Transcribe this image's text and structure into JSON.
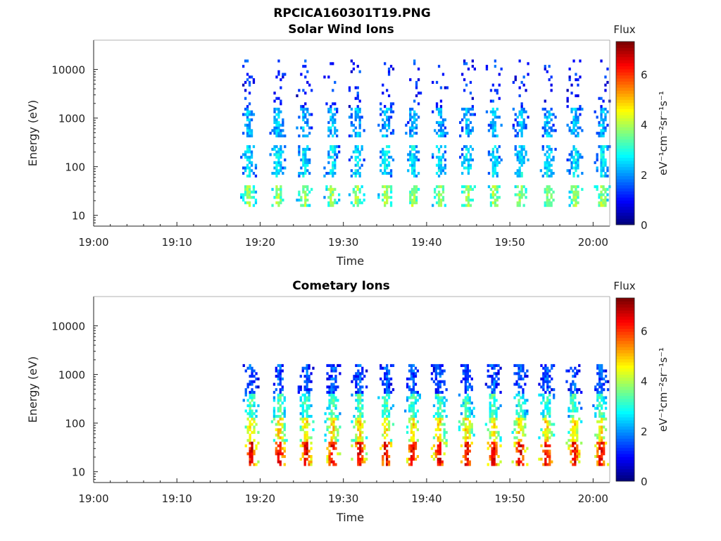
{
  "figure_title": "RPCICA160301T19.PNG",
  "chart_data": [
    {
      "type": "heatmap",
      "title": "Solar Wind Ions",
      "xlabel": "Time",
      "ylabel": "Energy (eV)",
      "y_scale": "log",
      "xlim": [
        "19:00",
        "20:02"
      ],
      "ylim": [
        6,
        40000
      ],
      "x_ticks": [
        "19:00",
        "19:10",
        "19:20",
        "19:30",
        "19:40",
        "19:50",
        "20:00"
      ],
      "y_ticks": [
        "10",
        "100",
        "1000",
        "10000"
      ],
      "colorbar": {
        "title": "Flux",
        "label": "eV⁻¹cm⁻²sr⁻¹s⁻¹",
        "range": [
          0,
          7.3
        ],
        "ticks": [
          "0",
          "2",
          "4",
          "6"
        ],
        "colormap": "jet"
      },
      "data_start": "19:17",
      "burst_times": [
        "19:18.5",
        "19:22",
        "19:25.2",
        "19:28.5",
        "19:31.5",
        "19:35",
        "19:38.3",
        "19:41.5",
        "19:44.8",
        "19:48",
        "19:51.2",
        "19:54.5",
        "19:57.7",
        "20:01"
      ],
      "bands": [
        {
          "emin": 15,
          "emax": 40,
          "level": 3.6
        },
        {
          "emin": 60,
          "emax": 250,
          "level": 2.4
        },
        {
          "emin": 400,
          "emax": 1600,
          "level": 2.1
        },
        {
          "emin": 1600,
          "emax": 15000,
          "level": 1.2
        }
      ]
    },
    {
      "type": "heatmap",
      "title": "Cometary Ions",
      "xlabel": "Time",
      "ylabel": "Energy (eV)",
      "y_scale": "log",
      "xlim": [
        "19:00",
        "20:02"
      ],
      "ylim": [
        6,
        40000
      ],
      "x_ticks": [
        "19:00",
        "19:10",
        "19:20",
        "19:30",
        "19:40",
        "19:50",
        "20:00"
      ],
      "y_ticks": [
        "10",
        "100",
        "1000",
        "10000"
      ],
      "colorbar": {
        "title": "Flux",
        "label": "eV⁻¹cm⁻²sr⁻¹s⁻¹",
        "range": [
          0,
          7.3
        ],
        "ticks": [
          "0",
          "2",
          "4",
          "6"
        ],
        "colormap": "jet"
      },
      "data_start": "19:17",
      "burst_times": [
        "19:18.8",
        "19:22.2",
        "19:25.4",
        "19:28.6",
        "19:31.8",
        "19:35",
        "19:38.2",
        "19:41.4",
        "19:44.7",
        "19:47.9",
        "19:51.1",
        "19:54.3",
        "19:57.6",
        "20:00.8"
      ],
      "bands": [
        {
          "emin": 12,
          "emax": 40,
          "level": 6.0
        },
        {
          "emin": 40,
          "emax": 120,
          "level": 4.4
        },
        {
          "emin": 120,
          "emax": 400,
          "level": 3.0
        },
        {
          "emin": 400,
          "emax": 1500,
          "level": 1.4
        }
      ]
    }
  ]
}
